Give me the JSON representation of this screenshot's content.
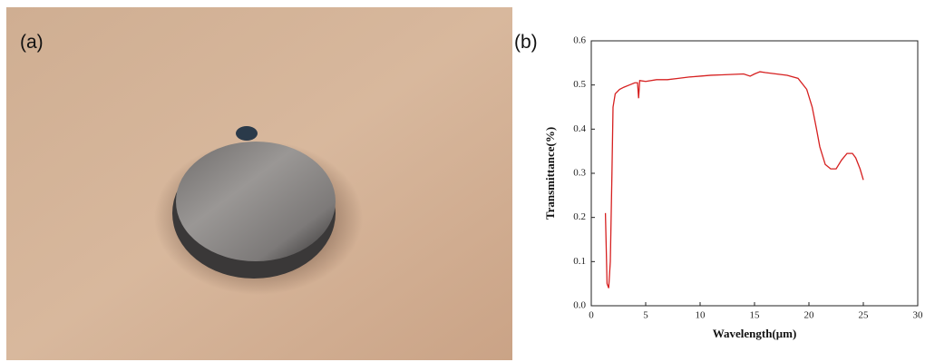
{
  "panel_labels": [
    "(a)",
    "(b)"
  ],
  "chart_data": {
    "type": "line",
    "x_label": "Wavelength(μm)",
    "y_label": "Transmittance(%)",
    "x": [
      1.3,
      1.45,
      1.6,
      1.75,
      1.9,
      2.0,
      2.2,
      2.6,
      3.0,
      3.5,
      4.0,
      4.25,
      4.35,
      4.45,
      5,
      6,
      7,
      8,
      9,
      10,
      11,
      12,
      13,
      14,
      14.6,
      15,
      15.5,
      16,
      17,
      18,
      19,
      19.8,
      20.3,
      20.7,
      21,
      21.5,
      22,
      22.5,
      23,
      23.5,
      24,
      24.3,
      24.7,
      25
    ],
    "series": [
      {
        "color": "#d62020",
        "values": [
          0.21,
          0.05,
          0.04,
          0.1,
          0.3,
          0.45,
          0.48,
          0.49,
          0.495,
          0.5,
          0.505,
          0.505,
          0.47,
          0.51,
          0.508,
          0.512,
          0.512,
          0.515,
          0.518,
          0.52,
          0.522,
          0.523,
          0.524,
          0.525,
          0.52,
          0.525,
          0.53,
          0.528,
          0.525,
          0.522,
          0.515,
          0.49,
          0.45,
          0.4,
          0.36,
          0.32,
          0.31,
          0.31,
          0.33,
          0.345,
          0.345,
          0.335,
          0.31,
          0.285
        ]
      }
    ],
    "xlim": [
      0,
      30
    ],
    "xticks": [
      0,
      5,
      10,
      15,
      20,
      25,
      30
    ],
    "ylim": [
      0,
      0.6
    ],
    "yticks": [
      {
        "value": 0,
        "label": "0.0"
      },
      0.1,
      0.2,
      0.3,
      0.4,
      0.5,
      0.6
    ]
  }
}
